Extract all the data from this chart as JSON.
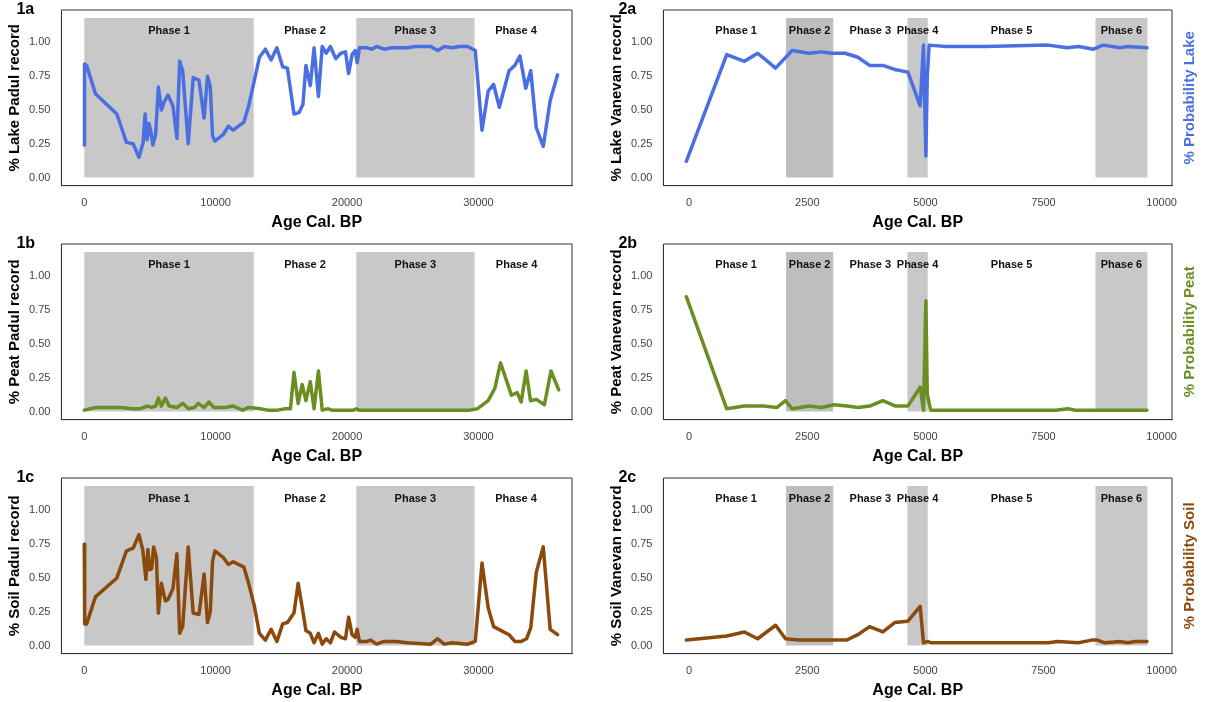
{
  "chart_data": [
    {
      "type": "line",
      "title": "1a",
      "xlabel": "Age Cal. BP",
      "ylabel": "% Lake Padul record",
      "xlim": [
        -1740,
        37120
      ],
      "ylim": [
        -0.06,
        1.24
      ],
      "xticks": [
        0,
        10000,
        20000,
        30000
      ],
      "yticks": [
        {
          "value": 0,
          "label": "0.00"
        },
        {
          "value": 0.25,
          "label": "0.25"
        },
        {
          "value": 0.5,
          "label": "0.50"
        },
        {
          "value": 0.75,
          "label": "0.75"
        },
        {
          "value": 1,
          "label": "1.00"
        }
      ],
      "bands": [
        {
          "axis": "x",
          "from": 0,
          "to": 12900,
          "label": "Phase 1",
          "color": "#c8c8c8"
        },
        {
          "axis": "x",
          "from": 20700,
          "to": 29700,
          "label": "Phase 3",
          "color": "#c8c8c8"
        }
      ],
      "annotations": [
        "Phase 2",
        "Phase 4"
      ],
      "series": [
        {
          "color": "#4a6fe3",
          "x": [
            0,
            20,
            180,
            850,
            2480,
            3210,
            3720,
            4160,
            4480,
            4630,
            4780,
            4930,
            5070,
            5220,
            5430,
            5640,
            5870,
            6080,
            6370,
            6750,
            7050,
            7260,
            7490,
            7910,
            8290,
            8730,
            9120,
            9380,
            9590,
            9760,
            9940,
            10590,
            10970,
            11330,
            12150,
            12510,
            12950,
            13330,
            13780,
            14220,
            14660,
            15100,
            15460,
            15960,
            16340,
            16640,
            16870,
            17200,
            17490,
            17820,
            18110,
            18410,
            18730,
            19140,
            19530,
            19880,
            20120,
            20380,
            20620,
            20770,
            20940,
            21500,
            21890,
            22240,
            22830,
            23420,
            24600,
            25190,
            26370,
            26900,
            27400,
            27990,
            28580,
            29170,
            29760,
            30270,
            30740,
            31150,
            31590,
            32330,
            32770,
            33160,
            33600,
            33980,
            34400,
            34930,
            35460,
            36020
          ],
          "values": [
            0.24,
            0.84,
            0.83,
            0.62,
            0.47,
            0.26,
            0.25,
            0.15,
            0.26,
            0.47,
            0.28,
            0.4,
            0.34,
            0.24,
            0.32,
            0.67,
            0.5,
            0.56,
            0.61,
            0.53,
            0.29,
            0.86,
            0.79,
            0.25,
            0.74,
            0.72,
            0.44,
            0.75,
            0.67,
            0.31,
            0.27,
            0.32,
            0.38,
            0.35,
            0.41,
            0.53,
            0.72,
            0.89,
            0.95,
            0.87,
            0.96,
            0.82,
            0.81,
            0.47,
            0.48,
            0.54,
            0.83,
            0.68,
            0.96,
            0.6,
            0.97,
            0.92,
            0.97,
            0.88,
            0.92,
            0.93,
            0.77,
            0.91,
            0.94,
            0.85,
            0.96,
            0.96,
            0.95,
            0.97,
            0.95,
            0.96,
            0.96,
            0.97,
            0.97,
            0.94,
            0.97,
            0.96,
            0.97,
            0.97,
            0.94,
            0.35,
            0.64,
            0.69,
            0.52,
            0.79,
            0.83,
            0.9,
            0.66,
            0.79,
            0.37,
            0.23,
            0.57,
            0.76
          ]
        }
      ]
    },
    {
      "type": "line",
      "title": "2a",
      "xlabel": "Age Cal. BP",
      "ylabel": "% Lake Vanevan record",
      "y2label": "% Probability Lake",
      "xlim": [
        -545,
        10220
      ],
      "ylim": [
        -0.06,
        1.24
      ],
      "xticks": [
        0,
        2500,
        5000,
        7500,
        10000
      ],
      "yticks": [
        {
          "value": 0,
          "label": "0.00"
        },
        {
          "value": 0.25,
          "label": "0.25"
        },
        {
          "value": 0.5,
          "label": "0.50"
        },
        {
          "value": 0.75,
          "label": "0.75"
        },
        {
          "value": 1,
          "label": "1.00"
        }
      ],
      "bands": [
        {
          "axis": "x",
          "from": 2050,
          "to": 3050,
          "label": "Phase 2",
          "color": "#bebebe"
        },
        {
          "axis": "x",
          "from": 4620,
          "to": 5050,
          "label": "Phase 4",
          "color": "#c8c8c8"
        },
        {
          "axis": "x",
          "from": 8600,
          "to": 9700,
          "label": "Phase 6",
          "color": "#c8c8c8"
        }
      ],
      "annotations": [
        "Phase 1",
        "Phase 3",
        "Phase 5"
      ],
      "series": [
        {
          "color": "#4a6fe3",
          "x": [
            -60,
            795,
            1170,
            1450,
            1830,
            2180,
            2540,
            2800,
            3020,
            3300,
            3570,
            3820,
            4100,
            4350,
            4630,
            4890,
            4960,
            5010,
            5040,
            5080,
            5430,
            6230,
            7600,
            8000,
            8240,
            8560,
            8760,
            9120,
            9280,
            9690
          ],
          "values": [
            0.12,
            0.91,
            0.86,
            0.92,
            0.81,
            0.94,
            0.92,
            0.93,
            0.92,
            0.92,
            0.89,
            0.83,
            0.83,
            0.8,
            0.78,
            0.53,
            0.98,
            0.16,
            0.75,
            0.98,
            0.97,
            0.97,
            0.98,
            0.96,
            0.97,
            0.95,
            0.98,
            0.96,
            0.97,
            0.96
          ]
        }
      ]
    },
    {
      "type": "line",
      "title": "1b",
      "xlabel": "Age Cal. BP",
      "ylabel": "% Peat Padul record",
      "xlim": [
        -1740,
        37120
      ],
      "ylim": [
        -0.06,
        1.24
      ],
      "xticks": [
        0,
        10000,
        20000,
        30000
      ],
      "yticks": [
        {
          "value": 0,
          "label": "0.00"
        },
        {
          "value": 0.25,
          "label": "0.25"
        },
        {
          "value": 0.5,
          "label": "0.50"
        },
        {
          "value": 0.75,
          "label": "0.75"
        },
        {
          "value": 1,
          "label": "1.00"
        }
      ],
      "bands": [
        {
          "axis": "x",
          "from": 0,
          "to": 12900,
          "label": "Phase 1",
          "color": "#c8c8c8"
        },
        {
          "axis": "x",
          "from": 20700,
          "to": 29700,
          "label": "Phase 3",
          "color": "#c8c8c8"
        }
      ],
      "annotations": [
        "Phase 2",
        "Phase 4"
      ],
      "series": [
        {
          "color": "#6b8e23",
          "x": [
            0,
            850,
            2770,
            3660,
            4250,
            4780,
            5130,
            5430,
            5640,
            5870,
            6170,
            6460,
            7050,
            7490,
            7940,
            8380,
            8670,
            9120,
            9500,
            9850,
            10740,
            11330,
            12060,
            12510,
            13390,
            13980,
            14720,
            15310,
            15690,
            15960,
            16280,
            16580,
            16870,
            17200,
            17490,
            17820,
            18110,
            18560,
            18850,
            19590,
            20470,
            20710,
            20910,
            23130,
            26080,
            27990,
            29320,
            29910,
            30740,
            31240,
            31680,
            32510,
            32950,
            33250,
            33630,
            33960,
            34400,
            35020,
            35520,
            36110
          ],
          "values": [
            0.01,
            0.03,
            0.03,
            0.02,
            0.02,
            0.04,
            0.03,
            0.04,
            0.1,
            0.04,
            0.1,
            0.04,
            0.03,
            0.06,
            0.02,
            0.03,
            0.06,
            0.03,
            0.07,
            0.03,
            0.03,
            0.04,
            0.01,
            0.03,
            0.02,
            0.01,
            0.01,
            0.02,
            0.02,
            0.29,
            0.06,
            0.2,
            0.08,
            0.22,
            0.02,
            0.3,
            0.01,
            0.02,
            0.01,
            0.01,
            0.01,
            0.02,
            0.01,
            0.01,
            0.01,
            0.01,
            0.01,
            0.02,
            0.08,
            0.17,
            0.36,
            0.12,
            0.14,
            0.07,
            0.3,
            0.08,
            0.09,
            0.05,
            0.3,
            0.16
          ]
        }
      ]
    },
    {
      "type": "line",
      "title": "2b",
      "xlabel": "Age Cal. BP",
      "ylabel": "% Peat Vanevan record",
      "y2label": "% Probability Peat",
      "xlim": [
        -545,
        10220
      ],
      "ylim": [
        -0.06,
        1.24
      ],
      "xticks": [
        0,
        2500,
        5000,
        7500,
        10000
      ],
      "yticks": [
        {
          "value": 0,
          "label": "0.00"
        },
        {
          "value": 0.25,
          "label": "0.25"
        },
        {
          "value": 0.5,
          "label": "0.50"
        },
        {
          "value": 0.75,
          "label": "0.75"
        },
        {
          "value": 1,
          "label": "1.00"
        }
      ],
      "bands": [
        {
          "axis": "x",
          "from": 2050,
          "to": 3050,
          "label": "Phase 2",
          "color": "#bebebe"
        },
        {
          "axis": "x",
          "from": 4620,
          "to": 5050,
          "label": "Phase 4",
          "color": "#c8c8c8"
        },
        {
          "axis": "x",
          "from": 8600,
          "to": 9700,
          "label": "Phase 6",
          "color": "#c8c8c8"
        }
      ],
      "annotations": [
        "Phase 1",
        "Phase 3",
        "Phase 5"
      ],
      "series": [
        {
          "color": "#6b8e23",
          "x": [
            -60,
            795,
            1170,
            1570,
            1860,
            2040,
            2180,
            2540,
            2800,
            3060,
            3340,
            3570,
            3820,
            4100,
            4370,
            4630,
            4890,
            4960,
            5010,
            5040,
            5110,
            6230,
            7760,
            8020,
            8160,
            9690
          ],
          "values": [
            0.85,
            0.02,
            0.04,
            0.04,
            0.03,
            0.08,
            0.02,
            0.04,
            0.03,
            0.05,
            0.04,
            0.03,
            0.04,
            0.08,
            0.04,
            0.04,
            0.18,
            0.01,
            0.82,
            0.13,
            0.01,
            0.01,
            0.01,
            0.02,
            0.01,
            0.01
          ]
        }
      ]
    },
    {
      "type": "line",
      "title": "1c",
      "xlabel": "Age Cal. BP",
      "ylabel": "% Soil Padul record",
      "xlim": [
        -1740,
        37120
      ],
      "ylim": [
        -0.06,
        1.24
      ],
      "xticks": [
        0,
        10000,
        20000,
        30000
      ],
      "yticks": [
        {
          "value": 0,
          "label": "0.00"
        },
        {
          "value": 0.25,
          "label": "0.25"
        },
        {
          "value": 0.5,
          "label": "0.50"
        },
        {
          "value": 0.75,
          "label": "0.75"
        },
        {
          "value": 1,
          "label": "1.00"
        }
      ],
      "bands": [
        {
          "axis": "x",
          "from": 0,
          "to": 12900,
          "label": "Phase 1",
          "color": "#c8c8c8"
        },
        {
          "axis": "x",
          "from": 20700,
          "to": 29700,
          "label": "Phase 3",
          "color": "#c8c8c8"
        }
      ],
      "annotations": [
        "Phase 2",
        "Phase 4"
      ],
      "series": [
        {
          "color": "#8b4a0c",
          "x": [
            0,
            30,
            180,
            850,
            2480,
            3210,
            3720,
            4160,
            4450,
            4690,
            4840,
            4990,
            5130,
            5280,
            5490,
            5640,
            5870,
            6170,
            6370,
            6750,
            7050,
            7260,
            7490,
            7910,
            8290,
            8730,
            9120,
            9380,
            9590,
            9760,
            9940,
            10590,
            10970,
            11330,
            12150,
            12510,
            12950,
            13330,
            13780,
            14220,
            14660,
            15100,
            15460,
            15960,
            16280,
            16640,
            16870,
            17200,
            17490,
            17820,
            18110,
            18410,
            18730,
            19050,
            19530,
            19880,
            20120,
            20380,
            20620,
            20770,
            20940,
            21500,
            21800,
            22240,
            22830,
            23720,
            24600,
            26370,
            26900,
            27400,
            27990,
            29170,
            29760,
            30270,
            30740,
            31150,
            32330,
            32770,
            33250,
            33660,
            33980,
            34400,
            34930,
            35460,
            36020
          ],
          "values": [
            0.75,
            0.16,
            0.16,
            0.36,
            0.5,
            0.7,
            0.72,
            0.82,
            0.71,
            0.49,
            0.71,
            0.56,
            0.57,
            0.73,
            0.65,
            0.24,
            0.46,
            0.33,
            0.34,
            0.42,
            0.68,
            0.09,
            0.14,
            0.73,
            0.24,
            0.23,
            0.53,
            0.17,
            0.25,
            0.62,
            0.7,
            0.65,
            0.6,
            0.62,
            0.58,
            0.46,
            0.29,
            0.09,
            0.04,
            0.12,
            0.03,
            0.16,
            0.17,
            0.24,
            0.46,
            0.25,
            0.11,
            0.09,
            0.02,
            0.09,
            0.01,
            0.05,
            0.02,
            0.1,
            0.06,
            0.05,
            0.21,
            0.08,
            0.06,
            0.12,
            0.03,
            0.03,
            0.04,
            0.01,
            0.03,
            0.03,
            0.02,
            0.01,
            0.05,
            0.01,
            0.02,
            0.01,
            0.03,
            0.61,
            0.28,
            0.14,
            0.08,
            0.03,
            0.03,
            0.05,
            0.13,
            0.54,
            0.73,
            0.12,
            0.08
          ]
        }
      ]
    },
    {
      "type": "line",
      "title": "2c",
      "xlabel": "Age Cal. BP",
      "ylabel": "% Soil Vanevan record",
      "y2label": "% Probability Soil",
      "xlim": [
        -545,
        10220
      ],
      "ylim": [
        -0.06,
        1.24
      ],
      "xticks": [
        0,
        2500,
        5000,
        7500,
        10000
      ],
      "yticks": [
        {
          "value": 0,
          "label": "0.00"
        },
        {
          "value": 0.25,
          "label": "0.25"
        },
        {
          "value": 0.5,
          "label": "0.50"
        },
        {
          "value": 0.75,
          "label": "0.75"
        },
        {
          "value": 1,
          "label": "1.00"
        }
      ],
      "bands": [
        {
          "axis": "x",
          "from": 2050,
          "to": 3050,
          "label": "Phase 2",
          "color": "#bebebe"
        },
        {
          "axis": "x",
          "from": 4620,
          "to": 5050,
          "label": "Phase 4",
          "color": "#c8c8c8"
        },
        {
          "axis": "x",
          "from": 8600,
          "to": 9700,
          "label": "Phase 6",
          "color": "#c8c8c8"
        }
      ],
      "annotations": [
        "Phase 1",
        "Phase 3",
        "Phase 5"
      ],
      "series": [
        {
          "color": "#8b4a0c",
          "x": [
            -60,
            795,
            1170,
            1450,
            1830,
            2040,
            2300,
            2540,
            3020,
            3330,
            3570,
            3820,
            4100,
            4350,
            4630,
            4890,
            4960,
            5050,
            5110,
            6230,
            7600,
            7800,
            8240,
            8520,
            8640,
            8800,
            9120,
            9280,
            9440,
            9690
          ],
          "values": [
            0.04,
            0.07,
            0.1,
            0.05,
            0.15,
            0.05,
            0.04,
            0.04,
            0.04,
            0.04,
            0.08,
            0.14,
            0.1,
            0.17,
            0.18,
            0.29,
            0.02,
            0.03,
            0.02,
            0.02,
            0.02,
            0.03,
            0.02,
            0.04,
            0.04,
            0.02,
            0.03,
            0.02,
            0.03,
            0.03
          ]
        }
      ]
    }
  ]
}
